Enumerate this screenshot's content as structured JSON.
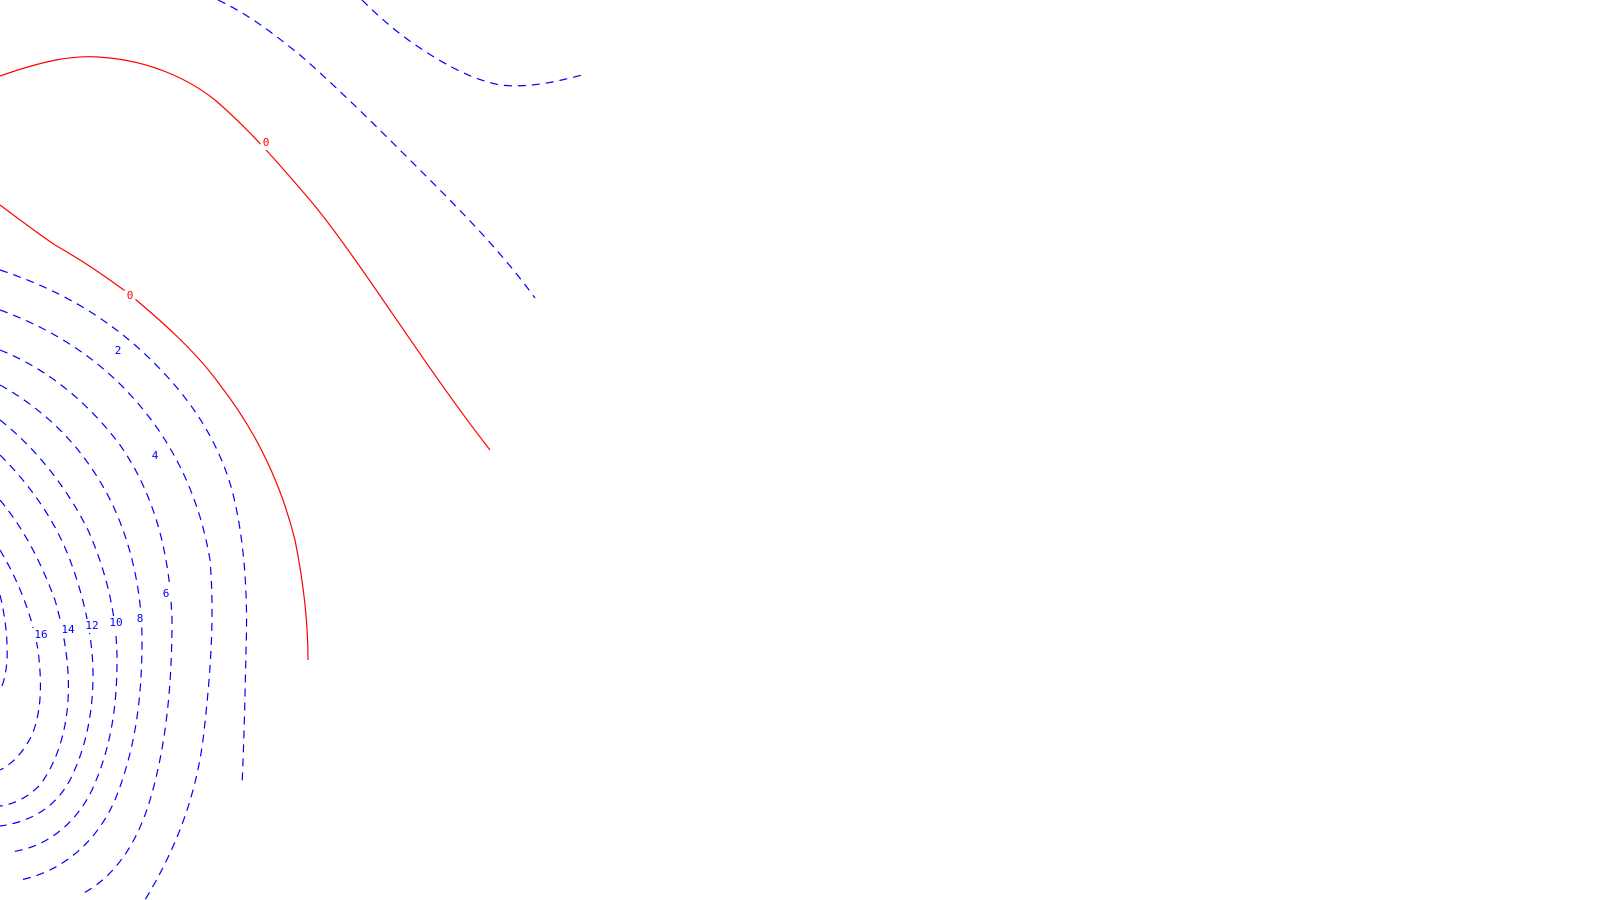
{
  "chart_data": {
    "type": "contour",
    "colors": {
      "zero": "#ff0000",
      "positive": "#0000ff",
      "background": "#ffffff"
    },
    "line_styles": {
      "zero": "solid",
      "positive": "dashed"
    },
    "contour_levels": [
      0,
      2,
      4,
      6,
      8,
      10,
      12,
      14,
      16
    ],
    "labels": [
      {
        "text": "0",
        "level": 0
      },
      {
        "text": "0",
        "level": 0
      },
      {
        "text": "2",
        "level": 2
      },
      {
        "text": "4",
        "level": 4
      },
      {
        "text": "6",
        "level": 6
      },
      {
        "text": "8",
        "level": 8
      },
      {
        "text": "10",
        "level": 10
      },
      {
        "text": "12",
        "level": 12
      },
      {
        "text": "14",
        "level": 14
      },
      {
        "text": "16",
        "level": 16
      }
    ]
  }
}
